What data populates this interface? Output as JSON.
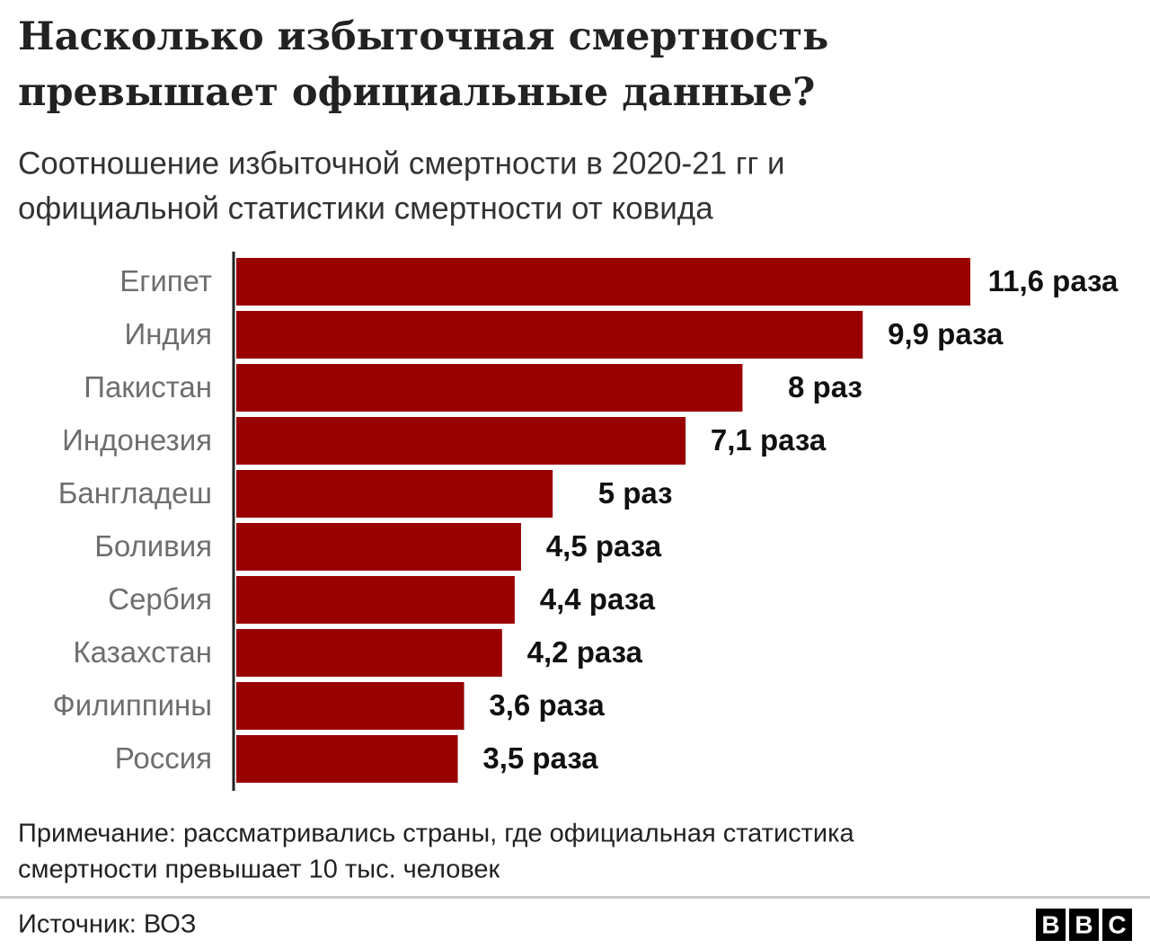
{
  "chart_data": {
    "type": "bar",
    "orientation": "horizontal",
    "title": [
      "Насколько избыточная смертность",
      "превышает официальные данные?"
    ],
    "subtitle": [
      "Соотношение избыточной смертности в 2020-21 гг и",
      "официальной статистики смертности от ковида"
    ],
    "categories": [
      "Египет",
      "Индия",
      "Пакистан",
      "Индонезия",
      "Бангладеш",
      "Боливия",
      "Сербия",
      "Казахстан",
      "Филиппины",
      "Россия"
    ],
    "values": [
      11.6,
      9.9,
      8,
      7.1,
      5,
      4.5,
      4.4,
      4.2,
      3.6,
      3.5
    ],
    "value_labels": [
      "11,6 раза",
      "9,9 раза",
      "8 раз",
      "7,1 раза",
      "5 раз",
      "4,5 раза",
      "4,4 раза",
      "4,2 раза",
      "3,6 раза",
      "3,5 раза"
    ],
    "color": "#990000",
    "note": [
      "Примечание: рассматривались страны, где официальная статистика",
      "смертности превышает 10 тыс. человек"
    ],
    "source": "Источник: ВОЗ",
    "logo": [
      "B",
      "B",
      "C"
    ]
  }
}
